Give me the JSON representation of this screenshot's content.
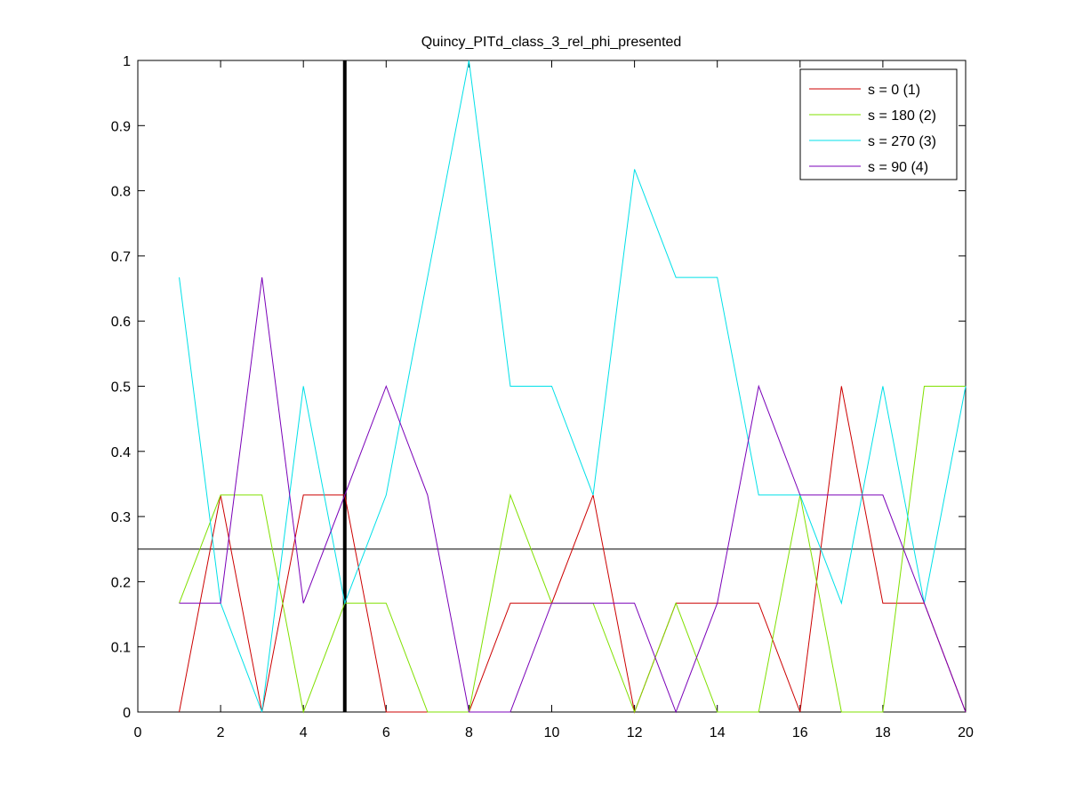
{
  "chart_data": {
    "type": "line",
    "title": "Quincy_PITd_class_3_rel_phi_presented",
    "xlabel": "",
    "ylabel": "",
    "xlim": [
      0,
      20
    ],
    "ylim": [
      0,
      1
    ],
    "xticks": [
      0,
      2,
      4,
      6,
      8,
      10,
      12,
      14,
      16,
      18,
      20
    ],
    "yticks": [
      0,
      0.1,
      0.2,
      0.3,
      0.4,
      0.5,
      0.6,
      0.7,
      0.8,
      0.9,
      1
    ],
    "ytick_labels": [
      "0",
      "0.1",
      "0.2",
      "0.3",
      "0.4",
      "0.5",
      "0.6",
      "0.7",
      "0.8",
      "0.9",
      "1"
    ],
    "grid": false,
    "legend_position": "top-right",
    "x": [
      1,
      2,
      3,
      4,
      5,
      6,
      7,
      8,
      9,
      10,
      11,
      12,
      13,
      14,
      15,
      16,
      17,
      18,
      19,
      20
    ],
    "series": [
      {
        "name": "s = 0 (1)",
        "color": "#cc0000",
        "values": [
          0,
          0.333,
          0,
          0.333,
          0.333,
          0,
          0,
          0,
          0.167,
          0.167,
          0.333,
          0,
          0.167,
          0.167,
          0.167,
          0,
          0.5,
          0.167,
          0.167,
          0
        ]
      },
      {
        "name": "s = 180 (2)",
        "color": "#80e000",
        "values": [
          0.167,
          0.333,
          0.333,
          0,
          0.167,
          0.167,
          0,
          0,
          0.333,
          0.167,
          0.167,
          0,
          0.167,
          0,
          0,
          0.333,
          0,
          0,
          0.5,
          0.5
        ]
      },
      {
        "name": "s = 270 (3)",
        "color": "#00e0e8",
        "values": [
          0.667,
          0.167,
          0,
          0.5,
          0.167,
          0.333,
          0.667,
          1,
          0.5,
          0.5,
          0.333,
          0.833,
          0.667,
          0.667,
          0.333,
          0.333,
          0.167,
          0.5,
          0.167,
          0.5
        ]
      },
      {
        "name": "s = 90 (4)",
        "color": "#7a00b8",
        "values": [
          0.167,
          0.167,
          0.667,
          0.167,
          0.333,
          0.5,
          0.333,
          0,
          0,
          0.167,
          0.167,
          0.167,
          0,
          0.167,
          0.5,
          0.333,
          0.333,
          0.333,
          0.167,
          0
        ]
      }
    ],
    "reference_lines": {
      "vertical_x": 5,
      "horizontal_y": 0.25
    }
  }
}
